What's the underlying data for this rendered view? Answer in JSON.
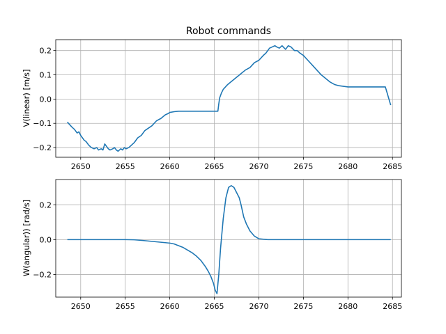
{
  "chart_data": [
    {
      "type": "line",
      "title": "Robot commands",
      "xlabel": "",
      "ylabel": "V(linear) [m/s]",
      "xlim": [
        2647.2,
        2686.0
      ],
      "ylim": [
        -0.24,
        0.245
      ],
      "xticks": [
        2650,
        2655,
        2660,
        2665,
        2670,
        2675,
        2680,
        2685
      ],
      "yticks": [
        -0.2,
        -0.1,
        0.0,
        0.1,
        0.2
      ],
      "ytick_labels": [
        "−0.2",
        "−0.1",
        "0.0",
        "0.1",
        "0.2"
      ],
      "grid": true,
      "color": "#1f77b4",
      "series": [
        {
          "x": [
            2648.5,
            2649.0,
            2649.3,
            2649.6,
            2649.8,
            2650.0,
            2650.2,
            2650.4,
            2650.6,
            2650.9,
            2651.2,
            2651.5,
            2651.8,
            2652.0,
            2652.3,
            2652.5,
            2652.7,
            2652.9,
            2653.1,
            2653.3,
            2653.6,
            2653.8,
            2654.0,
            2654.2,
            2654.5,
            2654.7,
            2654.9,
            2655.1,
            2655.4,
            2655.7,
            2656.0,
            2656.4,
            2656.8,
            2657.2,
            2657.6,
            2658.0,
            2658.5,
            2659.0,
            2659.5,
            2659.8,
            2660.0,
            2660.5,
            2661.0,
            2662.0,
            2663.0,
            2664.0,
            2665.0,
            2665.4,
            2665.5,
            2665.6,
            2665.8,
            2666.0,
            2666.5,
            2667.0,
            2667.5,
            2668.0,
            2668.5,
            2669.0,
            2669.5,
            2670.0,
            2670.5,
            2670.8,
            2671.0,
            2671.2,
            2671.5,
            2671.8,
            2672.0,
            2672.3,
            2672.6,
            2673.0,
            2673.3,
            2673.6,
            2674.0,
            2674.3,
            2674.6,
            2675.0,
            2675.5,
            2676.0,
            2676.5,
            2677.0,
            2677.5,
            2678.0,
            2678.5,
            2679.0,
            2680.0,
            2681.0,
            2682.0,
            2683.0,
            2684.0,
            2684.2,
            2684.4,
            2684.6,
            2684.8
          ],
          "y": [
            -0.095,
            -0.115,
            -0.125,
            -0.14,
            -0.135,
            -0.15,
            -0.16,
            -0.17,
            -0.175,
            -0.19,
            -0.2,
            -0.205,
            -0.2,
            -0.21,
            -0.205,
            -0.21,
            -0.185,
            -0.195,
            -0.205,
            -0.21,
            -0.205,
            -0.2,
            -0.21,
            -0.215,
            -0.205,
            -0.21,
            -0.2,
            -0.205,
            -0.2,
            -0.19,
            -0.18,
            -0.16,
            -0.15,
            -0.13,
            -0.12,
            -0.11,
            -0.09,
            -0.08,
            -0.065,
            -0.06,
            -0.055,
            -0.052,
            -0.05,
            -0.05,
            -0.05,
            -0.05,
            -0.05,
            -0.05,
            -0.02,
            0.005,
            0.025,
            0.04,
            0.06,
            0.075,
            0.09,
            0.105,
            0.12,
            0.13,
            0.15,
            0.16,
            0.18,
            0.19,
            0.2,
            0.21,
            0.215,
            0.22,
            0.215,
            0.21,
            0.22,
            0.205,
            0.22,
            0.215,
            0.2,
            0.2,
            0.19,
            0.18,
            0.16,
            0.14,
            0.12,
            0.1,
            0.085,
            0.07,
            0.06,
            0.055,
            0.05,
            0.05,
            0.05,
            0.05,
            0.05,
            0.05,
            0.025,
            0.0,
            -0.025
          ]
        }
      ]
    },
    {
      "type": "line",
      "title": "",
      "xlabel": "",
      "ylabel": "W(angular)) [rad/s]",
      "xlim": [
        2647.2,
        2686.0
      ],
      "ylim": [
        -0.33,
        0.345
      ],
      "xticks": [
        2650,
        2655,
        2660,
        2665,
        2670,
        2675,
        2680,
        2685
      ],
      "yticks": [
        -0.2,
        0.0,
        0.2
      ],
      "ytick_labels": [
        "−0.2",
        "0.0",
        "0.2"
      ],
      "grid": true,
      "color": "#1f77b4",
      "series": [
        {
          "x": [
            2648.5,
            2650.0,
            2652.0,
            2654.0,
            2655.0,
            2656.0,
            2657.0,
            2658.0,
            2659.0,
            2660.0,
            2660.5,
            2661.0,
            2661.5,
            2662.0,
            2662.5,
            2663.0,
            2663.5,
            2664.0,
            2664.3,
            2664.6,
            2664.9,
            2665.1,
            2665.3,
            2665.5,
            2665.7,
            2666.0,
            2666.3,
            2666.6,
            2666.9,
            2667.2,
            2667.5,
            2667.8,
            2668.0,
            2668.3,
            2668.6,
            2669.0,
            2669.5,
            2670.0,
            2671.0,
            2672.0,
            2675.0,
            2680.0,
            2684.8
          ],
          "y": [
            0.0,
            0.0,
            0.0,
            0.0,
            0.0,
            -0.001,
            -0.005,
            -0.01,
            -0.015,
            -0.02,
            -0.025,
            -0.035,
            -0.045,
            -0.06,
            -0.075,
            -0.095,
            -0.12,
            -0.155,
            -0.18,
            -0.21,
            -0.25,
            -0.29,
            -0.31,
            -0.2,
            -0.05,
            0.12,
            0.24,
            0.3,
            0.31,
            0.3,
            0.27,
            0.24,
            0.2,
            0.13,
            0.09,
            0.05,
            0.02,
            0.005,
            0.0,
            0.0,
            0.0,
            0.0,
            0.0
          ]
        }
      ]
    }
  ]
}
